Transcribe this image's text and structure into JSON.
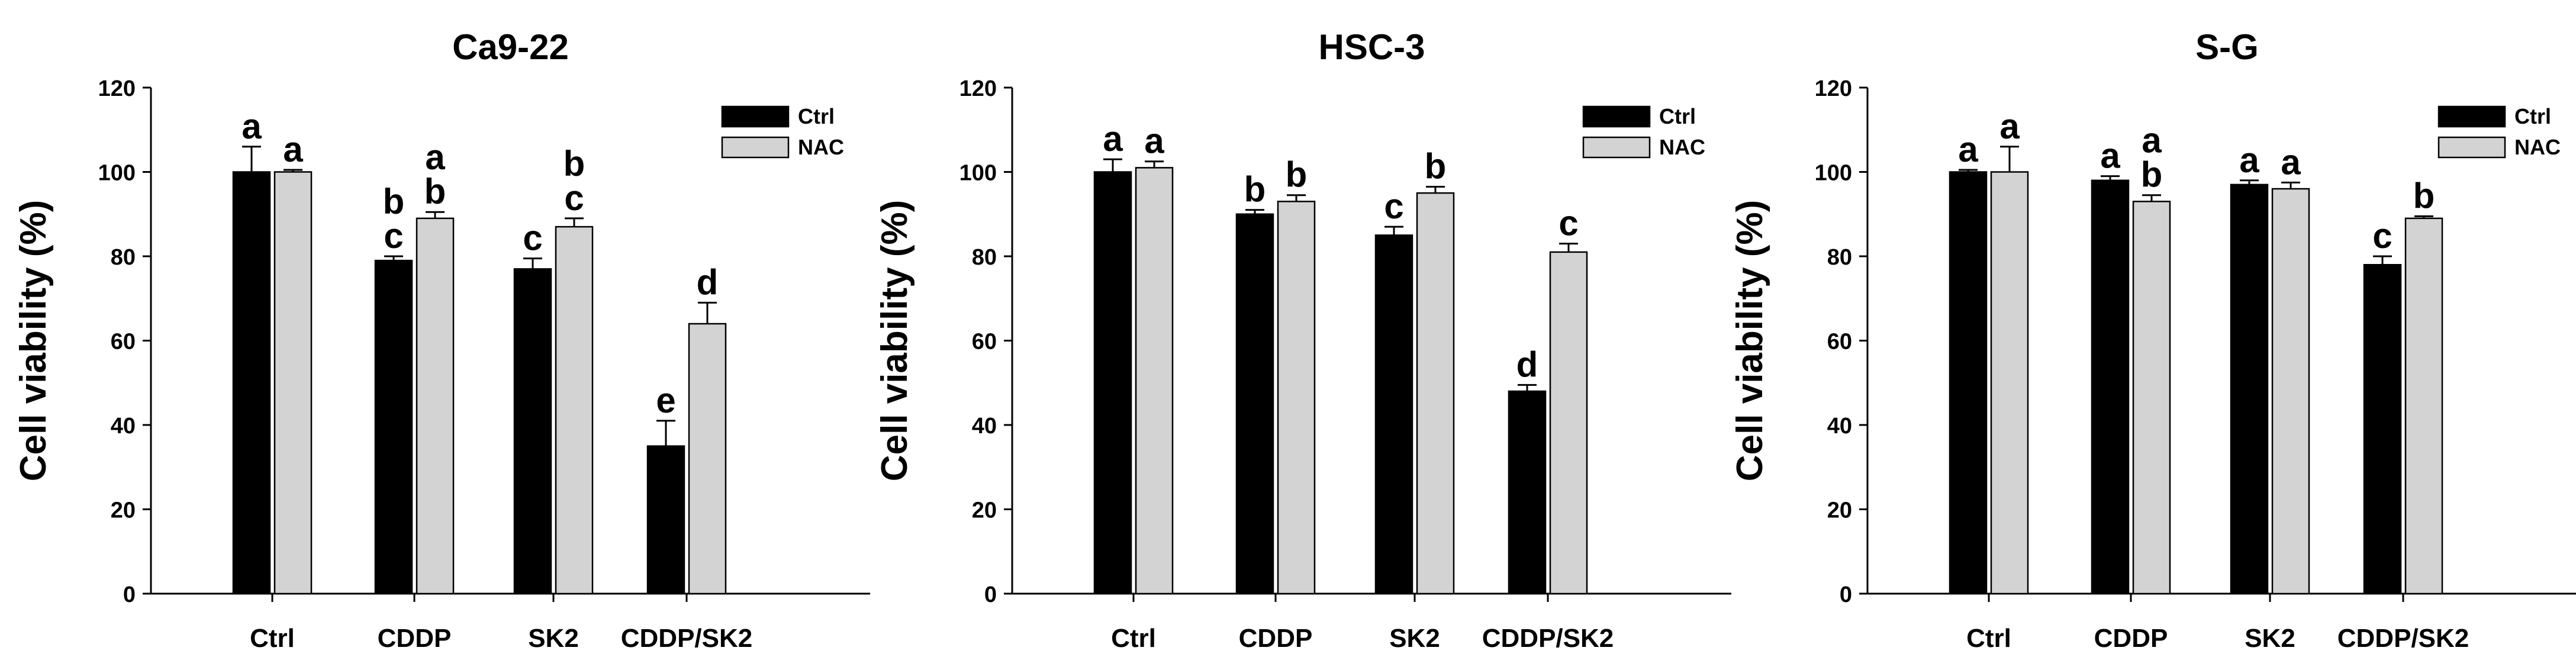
{
  "colors": {
    "ctrl_bar": "#000000",
    "nac_bar": "#d3d3d3",
    "axis": "#000000",
    "text": "#000000",
    "background": "#ffffff"
  },
  "chart_data": [
    {
      "type": "bar",
      "title": "Ca9-22",
      "xlabel": "",
      "ylabel": "Cell viability (%)",
      "ylim": [
        0,
        120
      ],
      "yticks": [
        0,
        20,
        40,
        60,
        80,
        100,
        120
      ],
      "categories": [
        "Ctrl",
        "CDDP",
        "SK2",
        "CDDP/SK2"
      ],
      "legend_position": "top-right",
      "series": [
        {
          "name": "Ctrl",
          "values": [
            100,
            79,
            77,
            35
          ],
          "errors": [
            6,
            1,
            2.5,
            6
          ],
          "letters": [
            "a",
            "b\nc",
            "c",
            "e"
          ]
        },
        {
          "name": "NAC",
          "values": [
            100,
            89,
            87,
            64
          ],
          "errors": [
            0.5,
            1.5,
            2,
            5
          ],
          "letters": [
            "a",
            "a\nb",
            "b\nc",
            "d"
          ]
        }
      ]
    },
    {
      "type": "bar",
      "title": "HSC-3",
      "xlabel": "",
      "ylabel": "Cell viability (%)",
      "ylim": [
        0,
        120
      ],
      "yticks": [
        0,
        20,
        40,
        60,
        80,
        100,
        120
      ],
      "categories": [
        "Ctrl",
        "CDDP",
        "SK2",
        "CDDP/SK2"
      ],
      "legend_position": "top-right",
      "series": [
        {
          "name": "Ctrl",
          "values": [
            100,
            90,
            85,
            48
          ],
          "errors": [
            3,
            1,
            2,
            1.5
          ],
          "letters": [
            "a",
            "b",
            "c",
            "d"
          ]
        },
        {
          "name": "NAC",
          "values": [
            101,
            93,
            95,
            81
          ],
          "errors": [
            1.5,
            1.5,
            1.5,
            2
          ],
          "letters": [
            "a",
            "b",
            "b",
            "c"
          ]
        }
      ]
    },
    {
      "type": "bar",
      "title": "S-G",
      "xlabel": "",
      "ylabel": "Cell viability (%)",
      "ylim": [
        0,
        120
      ],
      "yticks": [
        0,
        20,
        40,
        60,
        80,
        100,
        120
      ],
      "categories": [
        "Ctrl",
        "CDDP",
        "SK2",
        "CDDP/SK2"
      ],
      "legend_position": "top-right",
      "series": [
        {
          "name": "Ctrl",
          "values": [
            100,
            98,
            97,
            78
          ],
          "errors": [
            0.5,
            1,
            1,
            2
          ],
          "letters": [
            "a",
            "a",
            "a",
            "c"
          ]
        },
        {
          "name": "NAC",
          "values": [
            100,
            93,
            96,
            89
          ],
          "errors": [
            6,
            1.5,
            1.5,
            0.5
          ],
          "letters": [
            "a",
            "a\nb",
            "a",
            "b"
          ]
        }
      ]
    }
  ]
}
